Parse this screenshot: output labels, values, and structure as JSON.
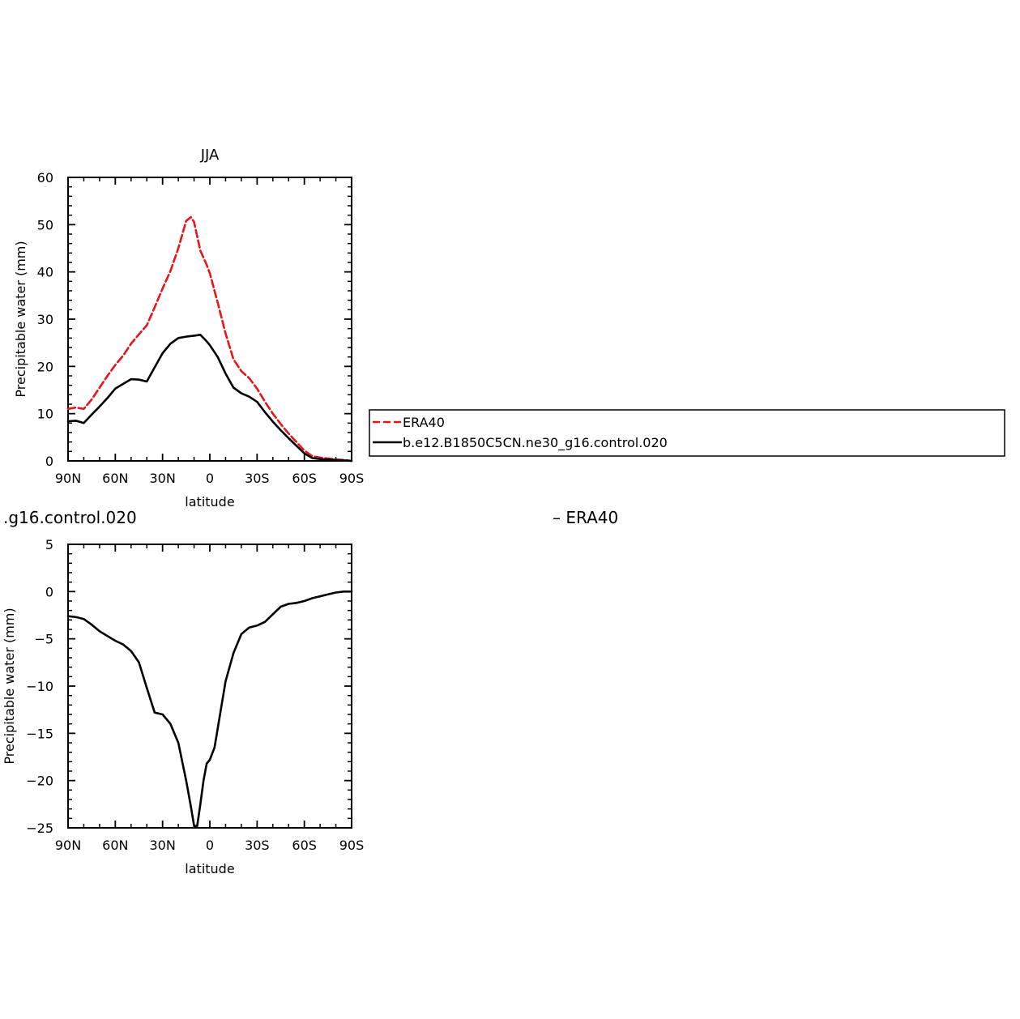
{
  "chart_data": [
    {
      "type": "line",
      "title": "JJA",
      "xlabel": "latitude",
      "ylabel": "Precipitable water (mm)",
      "xlim": [
        90,
        -90
      ],
      "ylim": [
        0,
        60
      ],
      "x_ticks": [
        {
          "value": 90,
          "label": "90N"
        },
        {
          "value": 60,
          "label": "60N"
        },
        {
          "value": 30,
          "label": "30N"
        },
        {
          "value": 0,
          "label": "0"
        },
        {
          "value": -30,
          "label": "30S"
        },
        {
          "value": -60,
          "label": "60S"
        },
        {
          "value": -90,
          "label": "90S"
        }
      ],
      "y_ticks": [
        {
          "value": 0,
          "label": "0"
        },
        {
          "value": 10,
          "label": "10"
        },
        {
          "value": 20,
          "label": "20"
        },
        {
          "value": 30,
          "label": "30"
        },
        {
          "value": 40,
          "label": "40"
        },
        {
          "value": 50,
          "label": "50"
        },
        {
          "value": 60,
          "label": "60"
        }
      ],
      "legend": {
        "placement": "right",
        "entries": [
          "ERA40",
          "b.e12.B1850C5CN.ne30_g16.control.020"
        ]
      },
      "series": [
        {
          "name": "ERA40",
          "color": "#e8141a",
          "dash": "dashed",
          "x": [
            90,
            85,
            80,
            75,
            70,
            65,
            60,
            55,
            50,
            45,
            40,
            35,
            30,
            25,
            20,
            15,
            12,
            10,
            8,
            6,
            4,
            2,
            0,
            -5,
            -10,
            -15,
            -20,
            -25,
            -30,
            -35,
            -40,
            -45,
            -50,
            -55,
            -60,
            -65,
            -70,
            -75,
            -80,
            -85,
            -90
          ],
          "y": [
            11,
            11.3,
            11,
            13,
            15.5,
            18,
            20.3,
            22.3,
            24.8,
            26.8,
            28.7,
            32.5,
            36.5,
            40.2,
            45,
            50.8,
            51.6,
            50.5,
            47.5,
            44.5,
            43,
            41.5,
            39.7,
            33.5,
            27,
            21.5,
            19,
            17.5,
            15.3,
            12.5,
            10,
            7.8,
            5.8,
            4,
            2.2,
            1,
            0.7,
            0.5,
            0.3,
            0.2,
            0
          ]
        },
        {
          "name": "b.e12.B1850C5CN.ne30_g16.control.020",
          "color": "#000000",
          "dash": "solid",
          "x": [
            90,
            85,
            80,
            75,
            70,
            65,
            60,
            55,
            50,
            45,
            40,
            35,
            30,
            25,
            20,
            15,
            10,
            6,
            4,
            2,
            0,
            -5,
            -10,
            -15,
            -20,
            -25,
            -30,
            -35,
            -40,
            -45,
            -50,
            -55,
            -60,
            -65,
            -70,
            -75,
            -80,
            -85,
            -90
          ],
          "y": [
            8.4,
            8.5,
            8,
            9.8,
            11.5,
            13.3,
            15.3,
            16.3,
            17.3,
            17.2,
            16.8,
            19.8,
            22.8,
            24.8,
            26,
            26.3,
            26.5,
            26.7,
            26,
            25.3,
            24.5,
            22,
            18.5,
            15.5,
            14.3,
            13.6,
            12.5,
            10.3,
            8.3,
            6.5,
            4.8,
            3.2,
            1.6,
            0.6,
            0.4,
            0.3,
            0.2,
            0.1,
            0
          ]
        }
      ]
    },
    {
      "type": "line",
      "title_fragment_left": ".g16.control.020",
      "title_fragment_right": "– ERA40",
      "xlabel": "latitude",
      "ylabel": "Precipitable water (mm)",
      "xlim": [
        90,
        -90
      ],
      "ylim": [
        -25,
        5
      ],
      "x_ticks": [
        {
          "value": 90,
          "label": "90N"
        },
        {
          "value": 60,
          "label": "60N"
        },
        {
          "value": 30,
          "label": "30N"
        },
        {
          "value": 0,
          "label": "0"
        },
        {
          "value": -30,
          "label": "30S"
        },
        {
          "value": -60,
          "label": "60S"
        },
        {
          "value": -90,
          "label": "90S"
        }
      ],
      "y_ticks": [
        {
          "value": 5,
          "label": "5"
        },
        {
          "value": 0,
          "label": "0"
        },
        {
          "value": -5,
          "label": "−5"
        },
        {
          "value": -10,
          "label": "−10"
        },
        {
          "value": -15,
          "label": "−15"
        },
        {
          "value": -20,
          "label": "−20"
        },
        {
          "value": -25,
          "label": "−25"
        }
      ],
      "series": [
        {
          "color": "#000000",
          "dash": "solid",
          "x": [
            90,
            85,
            80,
            75,
            70,
            65,
            60,
            55,
            50,
            45,
            40,
            35,
            30,
            25,
            20,
            15,
            12,
            10,
            8,
            6,
            4,
            2,
            0,
            -3,
            -5,
            -10,
            -15,
            -20,
            -25,
            -30,
            -35,
            -40,
            -45,
            -50,
            -55,
            -60,
            -65,
            -70,
            -75,
            -80,
            -85,
            -90
          ],
          "y": [
            -2.6,
            -2.7,
            -2.9,
            -3.5,
            -4.2,
            -4.7,
            -5.2,
            -5.6,
            -6.3,
            -7.5,
            -10.2,
            -12.8,
            -13,
            -14,
            -16,
            -20,
            -22.8,
            -24.8,
            -24.8,
            -22.5,
            -20,
            -18.2,
            -17.8,
            -16.5,
            -14.5,
            -9.5,
            -6.5,
            -4.5,
            -3.8,
            -3.6,
            -3.2,
            -2.4,
            -1.6,
            -1.3,
            -1.2,
            -1,
            -0.7,
            -0.5,
            -0.3,
            -0.1,
            0,
            0
          ]
        }
      ]
    }
  ]
}
